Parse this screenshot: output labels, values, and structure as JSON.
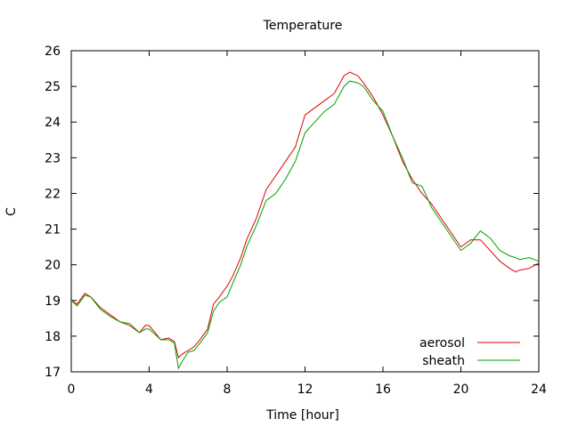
{
  "chart_data": {
    "type": "line",
    "title": "Temperature",
    "xlabel": "Time [hour]",
    "ylabel": "C",
    "xlim": [
      0,
      24
    ],
    "ylim": [
      17,
      26
    ],
    "xticks": [
      0,
      4,
      8,
      12,
      16,
      20,
      24
    ],
    "yticks": [
      17,
      18,
      19,
      20,
      21,
      22,
      23,
      24,
      25,
      26
    ],
    "grid": false,
    "legend_position": "bottom-right",
    "series": [
      {
        "name": "aerosol",
        "color": "#e00000",
        "x": [
          0,
          0.3,
          0.7,
          1.0,
          1.5,
          2.0,
          2.5,
          3.0,
          3.5,
          3.8,
          4.0,
          4.3,
          4.6,
          5.0,
          5.3,
          5.5,
          5.7,
          6.0,
          6.3,
          6.6,
          7.0,
          7.3,
          7.6,
          8.0,
          8.3,
          8.7,
          9.0,
          9.5,
          10.0,
          10.5,
          11.0,
          11.5,
          12.0,
          12.5,
          13.0,
          13.5,
          14.0,
          14.3,
          14.7,
          15.0,
          15.5,
          16.0,
          16.5,
          17.0,
          17.5,
          18.0,
          18.5,
          19.0,
          19.5,
          20.0,
          20.5,
          21.0,
          21.5,
          22.0,
          22.5,
          22.8,
          23.0,
          23.5,
          24.0
        ],
        "y": [
          19.0,
          18.9,
          19.2,
          19.1,
          18.8,
          18.6,
          18.4,
          18.3,
          18.1,
          18.3,
          18.3,
          18.1,
          17.9,
          17.95,
          17.85,
          17.4,
          17.5,
          17.6,
          17.7,
          17.9,
          18.2,
          18.9,
          19.1,
          19.4,
          19.7,
          20.2,
          20.7,
          21.3,
          22.1,
          22.5,
          22.9,
          23.3,
          24.2,
          24.4,
          24.6,
          24.8,
          25.3,
          25.4,
          25.3,
          25.1,
          24.7,
          24.2,
          23.6,
          22.9,
          22.4,
          22.0,
          21.7,
          21.3,
          20.9,
          20.5,
          20.7,
          20.7,
          20.4,
          20.1,
          19.9,
          19.8,
          19.85,
          19.9,
          20.05
        ]
      },
      {
        "name": "sheath",
        "color": "#00a000",
        "x": [
          0,
          0.3,
          0.7,
          1.0,
          1.5,
          2.0,
          2.5,
          3.0,
          3.5,
          3.8,
          4.0,
          4.3,
          4.6,
          5.0,
          5.3,
          5.5,
          5.7,
          6.0,
          6.3,
          6.6,
          7.0,
          7.3,
          7.6,
          8.0,
          8.3,
          8.7,
          9.0,
          9.5,
          10.0,
          10.5,
          11.0,
          11.5,
          12.0,
          12.5,
          13.0,
          13.5,
          14.0,
          14.3,
          14.7,
          15.0,
          15.5,
          16.0,
          16.5,
          17.0,
          17.5,
          18.0,
          18.5,
          19.0,
          19.5,
          20.0,
          20.5,
          21.0,
          21.5,
          22.0,
          22.5,
          22.8,
          23.0,
          23.5,
          24.0
        ],
        "y": [
          19.0,
          18.85,
          19.15,
          19.1,
          18.75,
          18.55,
          18.4,
          18.35,
          18.1,
          18.2,
          18.2,
          18.05,
          17.9,
          17.9,
          17.8,
          17.1,
          17.3,
          17.55,
          17.6,
          17.8,
          18.1,
          18.7,
          18.95,
          19.1,
          19.5,
          20.0,
          20.5,
          21.1,
          21.8,
          22.0,
          22.4,
          22.9,
          23.7,
          24.0,
          24.3,
          24.5,
          25.0,
          25.15,
          25.1,
          25.0,
          24.6,
          24.3,
          23.6,
          23.0,
          22.3,
          22.2,
          21.6,
          21.2,
          20.8,
          20.4,
          20.6,
          20.95,
          20.75,
          20.4,
          20.25,
          20.2,
          20.15,
          20.2,
          20.1
        ]
      }
    ]
  }
}
